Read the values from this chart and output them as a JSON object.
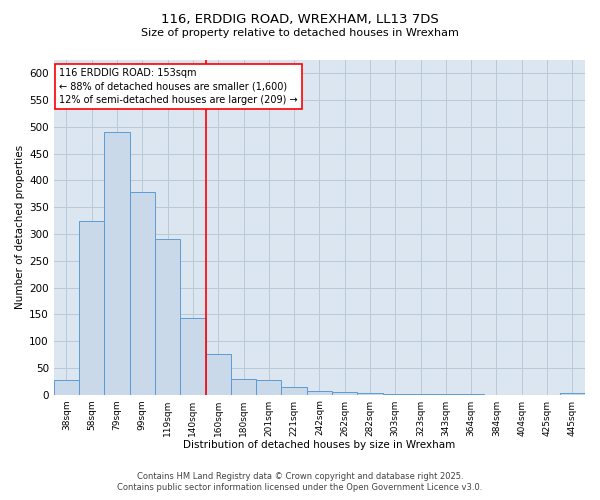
{
  "title_line1": "116, ERDDIG ROAD, WREXHAM, LL13 7DS",
  "title_line2": "Size of property relative to detached houses in Wrexham",
  "xlabel": "Distribution of detached houses by size in Wrexham",
  "ylabel": "Number of detached properties",
  "footer_line1": "Contains HM Land Registry data © Crown copyright and database right 2025.",
  "footer_line2": "Contains public sector information licensed under the Open Government Licence v3.0.",
  "categories": [
    "38sqm",
    "58sqm",
    "79sqm",
    "99sqm",
    "119sqm",
    "140sqm",
    "160sqm",
    "180sqm",
    "201sqm",
    "221sqm",
    "242sqm",
    "262sqm",
    "282sqm",
    "303sqm",
    "323sqm",
    "343sqm",
    "364sqm",
    "384sqm",
    "404sqm",
    "425sqm",
    "445sqm"
  ],
  "values": [
    28,
    325,
    490,
    378,
    290,
    143,
    75,
    30,
    27,
    14,
    7,
    5,
    3,
    2,
    1,
    1,
    1,
    0,
    0,
    0,
    3
  ],
  "bar_color": "#c9d9ea",
  "bar_edge_color": "#5b9bd5",
  "bar_linewidth": 0.7,
  "grid_color": "#b8c9d8",
  "bg_color": "#dce6f0",
  "annotation_text": "116 ERDDIG ROAD: 153sqm\n← 88% of detached houses are smaller (1,600)\n12% of semi-detached houses are larger (209) →",
  "vline_index": 6,
  "vline_color": "red",
  "ylim": [
    0,
    625
  ],
  "yticks": [
    0,
    50,
    100,
    150,
    200,
    250,
    300,
    350,
    400,
    450,
    500,
    550,
    600
  ],
  "annotation_fontsize": 7,
  "title1_fontsize": 9.5,
  "title2_fontsize": 8,
  "xlabel_fontsize": 7.5,
  "ylabel_fontsize": 7.5,
  "xtick_fontsize": 6.5,
  "ytick_fontsize": 7.5,
  "footer_fontsize": 6
}
